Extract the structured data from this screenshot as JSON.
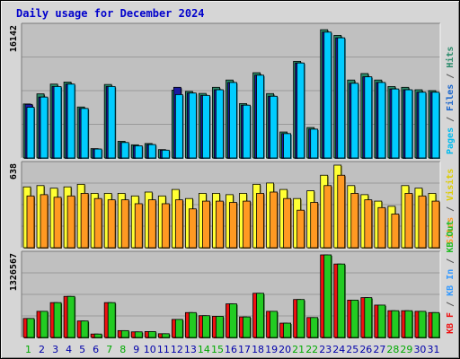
{
  "chart_data": {
    "type": "bar",
    "title": "Daily usage for December 2024",
    "categories": [
      "1",
      "2",
      "3",
      "4",
      "5",
      "6",
      "7",
      "8",
      "9",
      "10",
      "11",
      "12",
      "13",
      "14",
      "15",
      "16",
      "17",
      "18",
      "19",
      "20",
      "21",
      "22",
      "23",
      "24",
      "25",
      "26",
      "27",
      "28",
      "29",
      "30",
      "31"
    ],
    "weekend_days": [
      "1",
      "7",
      "8",
      "14",
      "15",
      "21",
      "22",
      "28",
      "29"
    ],
    "panels": [
      {
        "id": "top",
        "max_label": "16142",
        "ymax": 16142,
        "series": [
          {
            "name": "Hits",
            "color": "#2a8a6a",
            "values": [
              6650,
              7900,
              9100,
              9350,
              6280,
              1150,
              9050,
              2050,
              1620,
              1780,
              1030,
              8350,
              8200,
              7950,
              8700,
              9600,
              6700,
              10500,
              7930,
              3200,
              11900,
              3750,
              15800,
              15100,
              9600,
              10400,
              9600,
              8800,
              8700,
              8400,
              8300
            ]
          },
          {
            "name": "Files",
            "color": "#1a1aa0",
            "values": [
              6600,
              7500,
              8800,
              9100,
              6100,
              1100,
              8800,
              1900,
              1500,
              1650,
              960,
              8700,
              8000,
              7700,
              8400,
              9300,
              6500,
              10200,
              7600,
              3000,
              11700,
              3550,
              15500,
              14800,
              9200,
              10000,
              9300,
              8500,
              8400,
              8100,
              8100
            ]
          },
          {
            "name": "Pages",
            "color": "#00ccff",
            "values": [
              6250,
              7500,
              8800,
              9100,
              6100,
              1100,
              8800,
              1900,
              1500,
              1650,
              960,
              7800,
              8000,
              7700,
              8400,
              9300,
              6500,
              10200,
              7600,
              3000,
              11700,
              3550,
              15500,
              14800,
              9200,
              10000,
              9300,
              8500,
              8400,
              8100,
              8100
            ]
          }
        ]
      },
      {
        "id": "middle",
        "max_label": "638",
        "ymax": 638,
        "series": [
          {
            "name": "Visits",
            "color": "#ffff33",
            "values": [
              470,
              480,
              460,
              470,
              490,
              420,
              420,
              420,
              400,
              430,
              400,
              450,
              380,
              420,
              420,
              410,
              420,
              490,
              500,
              450,
              380,
              440,
              560,
              638,
              480,
              410,
              360,
              320,
              480,
              460,
              420
            ]
          },
          {
            "name": "Sites",
            "color": "#ff9922",
            "values": [
              400,
              410,
              390,
              400,
              420,
              380,
              370,
              370,
              340,
              370,
              340,
              370,
              300,
              360,
              360,
              350,
              360,
              420,
              430,
              380,
              290,
              350,
              480,
              560,
              420,
              370,
              310,
              260,
              420,
              400,
              360
            ]
          }
        ]
      },
      {
        "id": "bottom",
        "max_label": "1326567",
        "ymax": 1326567,
        "series": [
          {
            "name": "KB F",
            "color": "#ee1111",
            "values": [
              305000,
              420000,
              560000,
              660000,
              265000,
              55000,
              560000,
              110000,
              90000,
              95000,
              60000,
              290000,
              400000,
              350000,
              340000,
              540000,
              330000,
              710000,
              420000,
              230000,
              610000,
              320000,
              1326567,
              1180000,
              600000,
              640000,
              520000,
              430000,
              430000,
              420000,
              400000
            ]
          },
          {
            "name": "KB In",
            "color": "#3399ff",
            "values": []
          },
          {
            "name": "KB Out",
            "color": "#22cc22",
            "values": [
              305000,
              420000,
              560000,
              660000,
              265000,
              55000,
              560000,
              110000,
              90000,
              95000,
              60000,
              290000,
              400000,
              350000,
              340000,
              540000,
              330000,
              710000,
              420000,
              230000,
              610000,
              320000,
              1326567,
              1180000,
              600000,
              640000,
              520000,
              430000,
              430000,
              420000,
              400000
            ]
          }
        ]
      }
    ],
    "right_legends": [
      [
        {
          "text": "Pages",
          "color": "#00bbee"
        },
        {
          "text": " / ",
          "color": "#555555"
        },
        {
          "text": "Files",
          "color": "#1a66cc"
        },
        {
          "text": " / ",
          "color": "#555555"
        },
        {
          "text": "Hits",
          "color": "#2a8a6a"
        }
      ],
      [
        {
          "text": "Sites",
          "color": "#ff9922"
        },
        {
          "text": " / ",
          "color": "#555555"
        },
        {
          "text": "Visits",
          "color": "#ddcc00"
        }
      ],
      [
        {
          "text": "KB F",
          "color": "#ee1111"
        },
        {
          "text": " / ",
          "color": "#555555"
        },
        {
          "text": "KB In",
          "color": "#3399ff"
        },
        {
          "text": " / ",
          "color": "#555555"
        },
        {
          "text": "KB Out",
          "color": "#22bb22"
        }
      ]
    ],
    "grid": true,
    "day_label_color": "#0000aa",
    "weekend_label_color": "#00aa00"
  }
}
